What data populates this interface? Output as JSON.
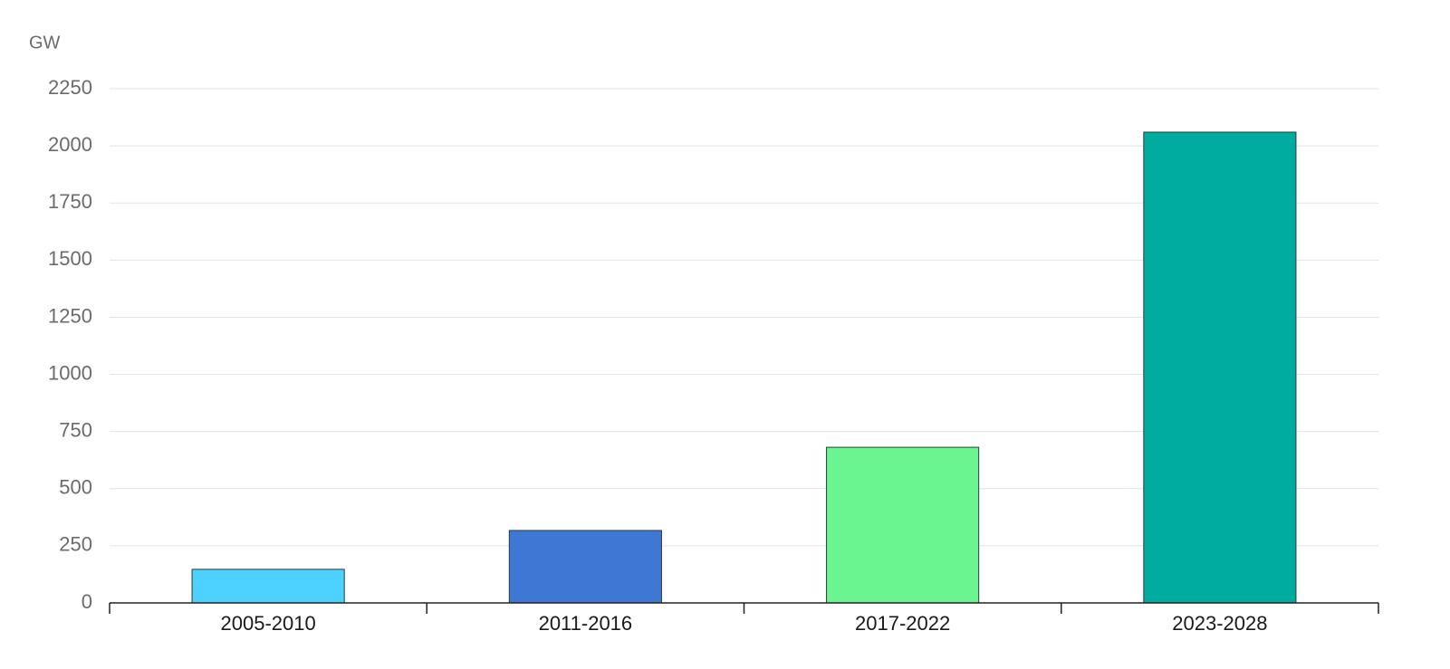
{
  "chart_data": {
    "type": "bar",
    "y_label": "GW",
    "categories": [
      "2005-2010",
      "2011-2016",
      "2017-2022",
      "2023-2028"
    ],
    "values": [
      147,
      317,
      681,
      2060
    ],
    "colors": [
      "#4dd2ff",
      "#3f78d4",
      "#6af591",
      "#00ac9f"
    ],
    "ylim": [
      0,
      2250
    ],
    "yticks": [
      0,
      250,
      500,
      750,
      1000,
      1250,
      1500,
      1750,
      2000,
      2250
    ],
    "grid": true
  }
}
